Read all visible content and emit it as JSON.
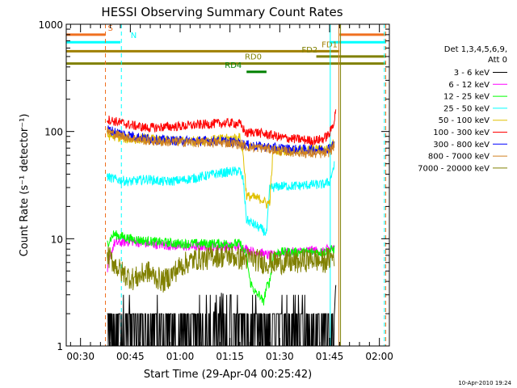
{
  "chart_data": {
    "type": "line",
    "title": "HESSI Observing Summary Count Rates",
    "xlabel": "Start Time (29-Apr-04 00:25:42)",
    "ylabel": "Count Rate (s⁻¹ detector⁻¹)",
    "yscale": "log",
    "ylim": [
      1,
      1000
    ],
    "xlim_minutes": [
      25.7,
      123
    ],
    "x_ticks": [
      "00:30",
      "00:45",
      "01:00",
      "01:15",
      "01:30",
      "01:45",
      "02:00"
    ],
    "x_tick_minutes": [
      30,
      45,
      60,
      75,
      90,
      105,
      120
    ],
    "y_ticks": [
      "1",
      "10",
      "100",
      "1000"
    ],
    "y_tick_values": [
      1,
      10,
      100,
      1000
    ],
    "legend_title": [
      "Det 1,3,4,5,6,9,",
      "Att 0"
    ],
    "legend_position": "right",
    "timestamp": "10-Apr-2010 19:24",
    "series": [
      {
        "name": "3 - 6 keV",
        "color": "#000000",
        "x": [
          38,
          40,
          45,
          50,
          55,
          60,
          65,
          70,
          72,
          74,
          76,
          78,
          80,
          85,
          90,
          95,
          100,
          103,
          104.5,
          106,
          106.6,
          106.8,
          107
        ],
        "y": [
          1,
          2,
          1.8,
          1.8,
          1.8,
          1.9,
          2,
          2.2,
          3,
          2.6,
          2,
          1.8,
          1.9,
          1.8,
          1.8,
          1.8,
          1.9,
          1.6,
          1,
          1.2,
          2.5,
          3.5,
          4
        ]
      },
      {
        "name": "6 - 12 keV",
        "color": "#ff00ff",
        "x": [
          38,
          40,
          45,
          50,
          60,
          70,
          78,
          80,
          82,
          84,
          86,
          88,
          90,
          95,
          100,
          103,
          104.5,
          106.5
        ],
        "y": [
          5,
          9,
          9.5,
          9,
          8.5,
          8.5,
          8.5,
          8,
          7.5,
          7.5,
          7,
          7,
          7.5,
          7.5,
          7.8,
          7.5,
          8,
          8
        ]
      },
      {
        "name": "12 - 25 keV",
        "color": "#00ff00",
        "x": [
          38,
          40,
          45,
          50,
          60,
          70,
          78,
          80,
          81,
          83,
          84,
          85,
          86,
          87,
          88,
          90,
          95,
          100,
          103,
          106.5
        ],
        "y": [
          9,
          11,
          10,
          9.5,
          9,
          9,
          9,
          7,
          4,
          3,
          3,
          2.5,
          3.5,
          4,
          7,
          7.5,
          7.5,
          7.5,
          7.5,
          8
        ]
      },
      {
        "name": "25 - 50 keV",
        "color": "#00ffff",
        "x": [
          38,
          40,
          45,
          50,
          55,
          60,
          65,
          70,
          75,
          78,
          79,
          80,
          85,
          86,
          87,
          88,
          90,
          95,
          100,
          103,
          105,
          106.5
        ],
        "y": [
          38,
          36,
          34,
          36,
          34,
          35,
          37,
          40,
          42,
          43,
          35,
          15,
          12,
          11,
          30,
          30,
          31,
          31,
          32,
          32,
          34,
          50
        ]
      },
      {
        "name": "50 - 100 keV",
        "color": "#e0c000",
        "x": [
          38,
          40,
          45,
          50,
          55,
          60,
          65,
          70,
          75,
          78,
          79,
          80,
          83,
          85,
          86,
          87,
          88,
          90,
          95,
          100,
          103,
          105,
          106.5
        ],
        "y": [
          92,
          90,
          84,
          86,
          82,
          82,
          82,
          84,
          86,
          88,
          60,
          25,
          24,
          23,
          21,
          22,
          68,
          66,
          66,
          68,
          68,
          70,
          80
        ]
      },
      {
        "name": "100 - 300 keV",
        "color": "#ff0000",
        "x": [
          38,
          40,
          45,
          50,
          55,
          60,
          65,
          70,
          75,
          78,
          80,
          82,
          85,
          88,
          90,
          95,
          100,
          103,
          105,
          106.5,
          107
        ],
        "y": [
          130,
          125,
          115,
          108,
          110,
          112,
          115,
          118,
          120,
          118,
          95,
          100,
          95,
          92,
          88,
          85,
          82,
          85,
          95,
          130,
          180
        ]
      },
      {
        "name": "300 - 800 keV",
        "color": "#0000ff",
        "x": [
          38,
          40,
          45,
          50,
          55,
          60,
          65,
          70,
          75,
          78,
          80,
          85,
          90,
          95,
          100,
          103,
          105,
          106.5
        ],
        "y": [
          105,
          100,
          92,
          86,
          83,
          82,
          82,
          82,
          80,
          78,
          75,
          72,
          70,
          68,
          68,
          68,
          70,
          80
        ]
      },
      {
        "name": "800 - 7000 keV",
        "color": "#d08020",
        "x": [
          38,
          40,
          45,
          50,
          55,
          60,
          65,
          70,
          75,
          78,
          80,
          85,
          90,
          95,
          100,
          103,
          105,
          106.5
        ],
        "y": [
          100,
          95,
          87,
          82,
          80,
          80,
          79,
          79,
          78,
          76,
          72,
          70,
          66,
          64,
          62,
          62,
          64,
          75
        ]
      },
      {
        "name": "7000 - 20000 keV",
        "color": "#808000",
        "x": [
          38,
          40,
          42,
          44,
          46,
          48,
          50,
          52,
          55,
          58,
          60,
          62,
          65,
          68,
          70,
          72,
          75,
          78,
          80,
          82,
          85,
          88,
          90,
          95,
          100,
          103,
          106.5
        ],
        "y": [
          7,
          6,
          5,
          4.5,
          4.2,
          4.5,
          5,
          4.5,
          4,
          4.8,
          5.5,
          6,
          6.5,
          6.5,
          7,
          6.8,
          7,
          6.5,
          6.5,
          6.5,
          6,
          6,
          6,
          6,
          6.5,
          6,
          7
        ]
      }
    ],
    "flags": [
      {
        "label": "S",
        "color": "#f07020",
        "level": 800,
        "segments": [
          [
            25.7,
            37.5
          ],
          [
            108,
            122
          ]
        ]
      },
      {
        "label": "N",
        "color": "#00ffff",
        "level": 680,
        "segments": [
          [
            25.7,
            42
          ],
          [
            105,
            122
          ]
        ]
      },
      {
        "label": "FD1",
        "color": "#a08000",
        "level": 560,
        "segments": [
          [
            25.7,
            108
          ]
        ]
      },
      {
        "label": "FD2",
        "color": "#808000",
        "level": 500,
        "segments": [
          [
            101,
            122
          ]
        ]
      },
      {
        "label": "RD0",
        "color": "#808000",
        "level": 430,
        "segments": [
          [
            25.7,
            122
          ]
        ]
      },
      {
        "label": "RD4",
        "color": "#008000",
        "level": 360,
        "segments": [
          [
            80,
            86
          ]
        ]
      }
    ],
    "flag_label_positions_minutes": {
      "S": 39,
      "N": 46,
      "FD1": 105,
      "FD2": 99,
      "RD0": 82,
      "RD4": 76
    },
    "vertical_markers": [
      {
        "x": 37.5,
        "color": "#f07020",
        "style": "dashed"
      },
      {
        "x": 42.3,
        "color": "#00ffff",
        "style": "dashed"
      },
      {
        "x": 105.2,
        "color": "#00ffff",
        "style": "solid"
      },
      {
        "x": 107.8,
        "color": "#d08020",
        "style": "solid"
      },
      {
        "x": 108.3,
        "color": "#808000",
        "style": "solid"
      },
      {
        "x": 121.5,
        "color": "#00ffff",
        "style": "dashed"
      },
      {
        "x": 121.9,
        "color": "#f07020",
        "style": "dashed"
      }
    ]
  }
}
